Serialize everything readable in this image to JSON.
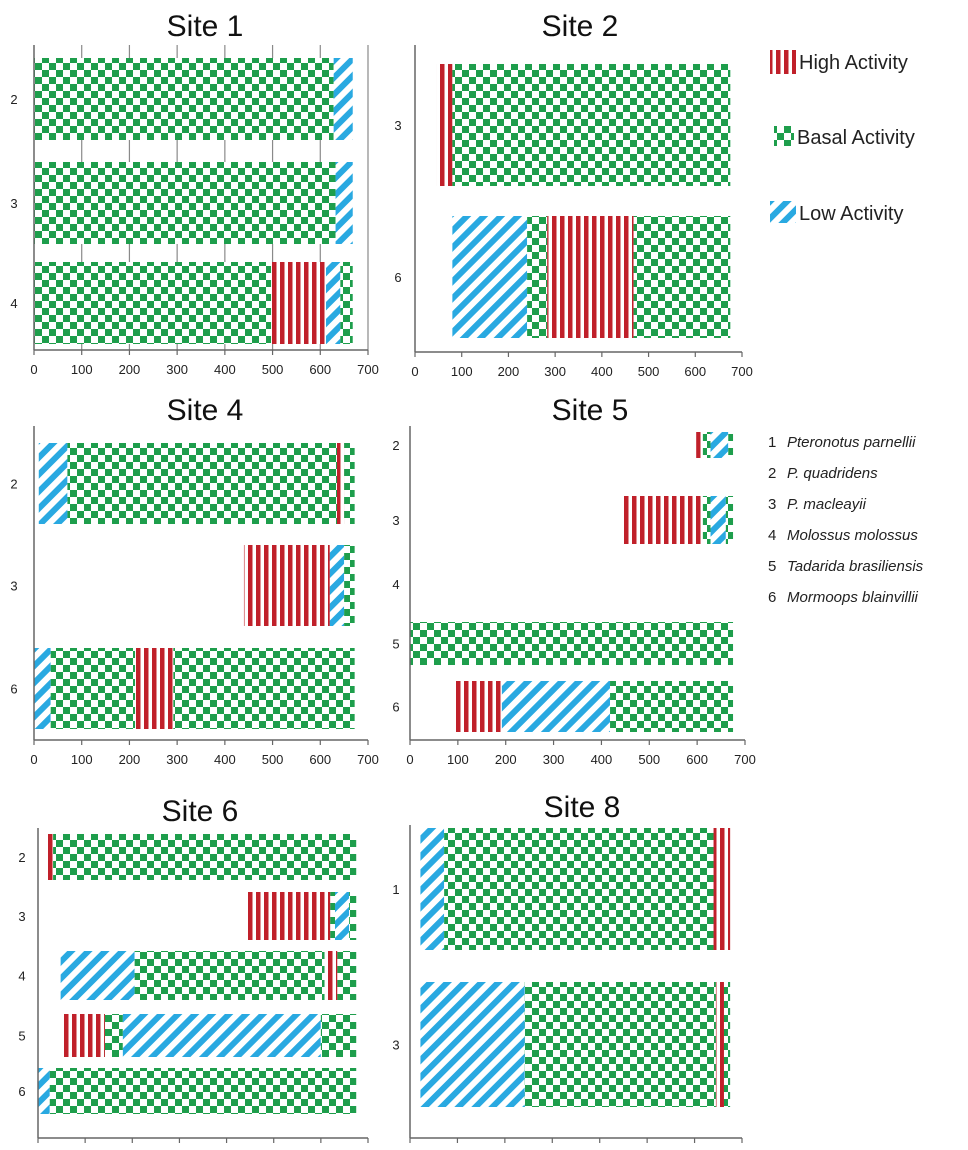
{
  "legend": {
    "items": [
      {
        "key": "high",
        "label": "High Activity"
      },
      {
        "key": "basal",
        "label": "Basal Activity"
      },
      {
        "key": "low",
        "label": "Low Activity"
      }
    ],
    "colors": {
      "high": "#c0202a",
      "basal": "#1e9e4c",
      "low": "#29a9e1"
    }
  },
  "species_legend": [
    {
      "num": "1",
      "name": "Pteronotus parnellii"
    },
    {
      "num": "2",
      "name": "P. quadridens"
    },
    {
      "num": "3",
      "name": "P. macleayii"
    },
    {
      "num": "4",
      "name": "Molossus molossus"
    },
    {
      "num": "5",
      "name": "Tadarida brasiliensis"
    },
    {
      "num": "6",
      "name": "Mormoops blainvillii"
    }
  ],
  "chart_data": [
    {
      "type": "bar",
      "orientation": "horizontal-stacked",
      "title": "Site 1",
      "xlim": [
        0,
        700
      ],
      "xticks": [
        0,
        100,
        200,
        300,
        400,
        500,
        600,
        700
      ],
      "grid": true,
      "rows": [
        {
          "label": "2",
          "segments": [
            {
              "type": "basal",
              "start": 0,
              "end": 628
            },
            {
              "type": "low",
              "start": 628,
              "end": 668
            }
          ]
        },
        {
          "label": "3",
          "segments": [
            {
              "type": "basal",
              "start": 0,
              "end": 632
            },
            {
              "type": "low",
              "start": 632,
              "end": 668
            }
          ]
        },
        {
          "label": "4",
          "segments": [
            {
              "type": "basal",
              "start": 0,
              "end": 497
            },
            {
              "type": "high",
              "start": 497,
              "end": 612
            },
            {
              "type": "low",
              "start": 612,
              "end": 642
            },
            {
              "type": "basal",
              "start": 642,
              "end": 668
            }
          ]
        }
      ]
    },
    {
      "type": "bar",
      "orientation": "horizontal-stacked",
      "title": "Site 2",
      "xlim": [
        0,
        700
      ],
      "xticks": [
        0,
        100,
        200,
        300,
        400,
        500,
        600,
        700
      ],
      "grid": false,
      "rows": [
        {
          "label": "3",
          "segments": [
            {
              "type": "high",
              "start": 46,
              "end": 80
            },
            {
              "type": "basal",
              "start": 80,
              "end": 675
            }
          ]
        },
        {
          "label": "6",
          "segments": [
            {
              "type": "low",
              "start": 80,
              "end": 240
            },
            {
              "type": "basal",
              "start": 240,
              "end": 283
            },
            {
              "type": "high",
              "start": 283,
              "end": 468
            },
            {
              "type": "basal",
              "start": 468,
              "end": 675
            }
          ]
        }
      ]
    },
    {
      "type": "bar",
      "orientation": "horizontal-stacked",
      "title": "Site 4",
      "xlim": [
        0,
        700
      ],
      "xticks": [
        0,
        100,
        200,
        300,
        400,
        500,
        600,
        700
      ],
      "grid": false,
      "rows": [
        {
          "label": "2",
          "segments": [
            {
              "type": "low",
              "start": 10,
              "end": 70
            },
            {
              "type": "basal",
              "start": 70,
              "end": 635
            },
            {
              "type": "high",
              "start": 635,
              "end": 650
            },
            {
              "type": "basal",
              "start": 650,
              "end": 672
            }
          ]
        },
        {
          "label": "3",
          "segments": [
            {
              "type": "high",
              "start": 440,
              "end": 620
            },
            {
              "type": "low",
              "start": 620,
              "end": 650
            },
            {
              "type": "basal",
              "start": 650,
              "end": 672
            }
          ]
        },
        {
          "label": "6",
          "segments": [
            {
              "type": "low",
              "start": 0,
              "end": 35
            },
            {
              "type": "basal",
              "start": 35,
              "end": 212
            },
            {
              "type": "high",
              "start": 212,
              "end": 292
            },
            {
              "type": "basal",
              "start": 292,
              "end": 672
            }
          ]
        }
      ]
    },
    {
      "type": "bar",
      "orientation": "horizontal-stacked",
      "title": "Site 5",
      "xlim": [
        0,
        700
      ],
      "xticks": [
        0,
        100,
        200,
        300,
        400,
        500,
        600,
        700
      ],
      "grid": false,
      "rows": [
        {
          "label": "2",
          "segments": [
            {
              "type": "high",
              "start": 598,
              "end": 612
            },
            {
              "type": "basal",
              "start": 612,
              "end": 628
            },
            {
              "type": "low",
              "start": 628,
              "end": 665
            },
            {
              "type": "basal",
              "start": 665,
              "end": 675
            }
          ]
        },
        {
          "label": "3",
          "segments": [
            {
              "type": "high",
              "start": 442,
              "end": 612
            },
            {
              "type": "basal",
              "start": 612,
              "end": 628
            },
            {
              "type": "low",
              "start": 628,
              "end": 660
            },
            {
              "type": "basal",
              "start": 660,
              "end": 675
            }
          ]
        },
        {
          "label": "4",
          "segments": []
        },
        {
          "label": "5",
          "segments": [
            {
              "type": "basal",
              "start": 0,
              "end": 675
            }
          ]
        },
        {
          "label": "6",
          "segments": [
            {
              "type": "high",
              "start": 92,
              "end": 192
            },
            {
              "type": "low",
              "start": 192,
              "end": 418
            },
            {
              "type": "basal",
              "start": 418,
              "end": 675
            }
          ]
        }
      ]
    },
    {
      "type": "bar",
      "orientation": "horizontal-stacked",
      "title": "Site 6",
      "xlim": [
        0,
        700
      ],
      "xticks": [
        0,
        100,
        200,
        300,
        400,
        500,
        600,
        700
      ],
      "grid": false,
      "rows": [
        {
          "label": "2",
          "segments": [
            {
              "type": "high",
              "start": 20,
              "end": 32
            },
            {
              "type": "basal",
              "start": 32,
              "end": 675
            }
          ]
        },
        {
          "label": "3",
          "segments": [
            {
              "type": "high",
              "start": 442,
              "end": 620
            },
            {
              "type": "basal",
              "start": 620,
              "end": 630
            },
            {
              "type": "low",
              "start": 630,
              "end": 660
            },
            {
              "type": "basal",
              "start": 660,
              "end": 675
            }
          ]
        },
        {
          "label": "4",
          "segments": [
            {
              "type": "low",
              "start": 48,
              "end": 205
            },
            {
              "type": "basal",
              "start": 205,
              "end": 608
            },
            {
              "type": "high",
              "start": 608,
              "end": 635
            },
            {
              "type": "basal",
              "start": 635,
              "end": 675
            }
          ]
        },
        {
          "label": "5",
          "segments": [
            {
              "type": "high",
              "start": 50,
              "end": 142
            },
            {
              "type": "basal",
              "start": 142,
              "end": 180
            },
            {
              "type": "low",
              "start": 180,
              "end": 600
            },
            {
              "type": "basal",
              "start": 600,
              "end": 675
            }
          ]
        },
        {
          "label": "6",
          "segments": [
            {
              "type": "low",
              "start": 0,
              "end": 25
            },
            {
              "type": "basal",
              "start": 25,
              "end": 675
            }
          ]
        }
      ]
    },
    {
      "type": "bar",
      "orientation": "horizontal-stacked",
      "title": "Site 8",
      "xlim": [
        0,
        700
      ],
      "xticks": [
        0,
        100,
        200,
        300,
        400,
        500,
        600,
        700
      ],
      "grid": false,
      "rows": [
        {
          "label": "1",
          "segments": [
            {
              "type": "low",
              "start": 22,
              "end": 72
            },
            {
              "type": "basal",
              "start": 72,
              "end": 640
            },
            {
              "type": "high",
              "start": 640,
              "end": 675
            }
          ]
        },
        {
          "label": "3",
          "segments": [
            {
              "type": "low",
              "start": 22,
              "end": 242
            },
            {
              "type": "basal",
              "start": 242,
              "end": 645
            },
            {
              "type": "high",
              "start": 645,
              "end": 662
            },
            {
              "type": "basal",
              "start": 662,
              "end": 675
            }
          ]
        }
      ]
    }
  ]
}
